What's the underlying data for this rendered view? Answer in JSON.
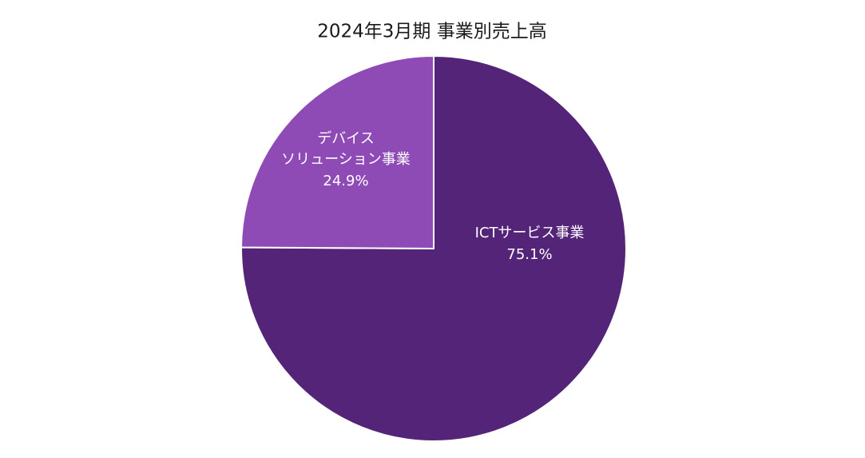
{
  "chart_data": {
    "type": "pie",
    "title": "2024年3月期 事業別売上高",
    "categories": [
      "ICTサービス事業",
      "デバイス\nソリューション事業"
    ],
    "values": [
      75.1,
      24.9
    ],
    "value_labels": [
      "75.1%",
      "24.9%"
    ],
    "colors": [
      "#542478",
      "#8e4bb6"
    ]
  }
}
